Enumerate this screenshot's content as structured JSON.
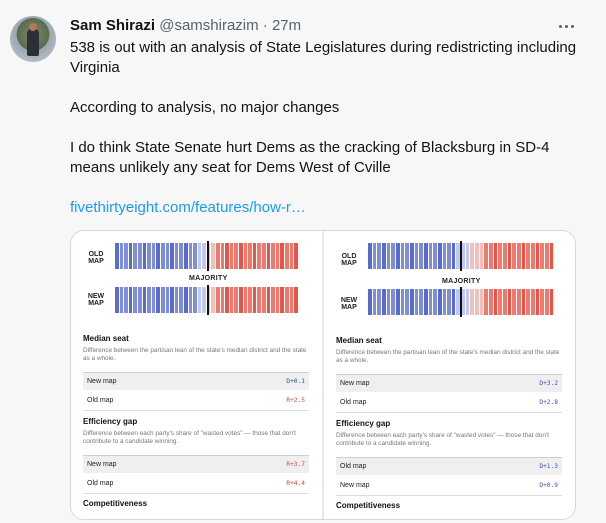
{
  "tweet": {
    "author_name": "Sam Shirazi",
    "handle": "@samshirazim",
    "separator": "·",
    "time": "27m",
    "lines": [
      "538 is out with an analysis of State Legislatures during redistricting including Virginia",
      "According to analysis, no major changes",
      "I do think State Senate hurt Dems as the cracking of Blacksburg in SD-4 means unlikely any seat for Dems West of Cville"
    ],
    "link_text": "fivethirtyeight.com/features/how-r…"
  },
  "image": {
    "left": {
      "old_map_label": "OLD MAP",
      "new_map_label": "NEW MAP",
      "majority_label": "MAJORITY",
      "sections": {
        "median_seat": {
          "title": "Median seat",
          "desc": "Difference between the partisan lean of the state's median district and the state as a whole.",
          "rows": [
            {
              "label": "New map",
              "value": "D+0.1"
            },
            {
              "label": "Old map",
              "value": "R+2.5"
            }
          ]
        },
        "efficiency_gap": {
          "title": "Efficiency gap",
          "desc": "Difference between each party's share of \"wasted votes\" — those that don't contribute to a candidate winning.",
          "rows": [
            {
              "label": "New map",
              "value": "R+3.7"
            },
            {
              "label": "Old map",
              "value": "R+4.4"
            }
          ]
        },
        "competitiveness": {
          "title": "Competitiveness"
        }
      }
    },
    "right": {
      "old_map_label": "OLD MAP",
      "new_map_label": "NEW MAP",
      "majority_label": "MAJORITY",
      "sections": {
        "median_seat": {
          "title": "Median seat",
          "desc": "Difference between the partisan lean of the state's median district and the state as a whole.",
          "rows": [
            {
              "label": "New map",
              "value": "D+3.2"
            },
            {
              "label": "Old map",
              "value": "D+2.8"
            }
          ]
        },
        "efficiency_gap": {
          "title": "Efficiency gap",
          "desc": "Difference between each party's share of \"wasted votes\" — those that don't contribute to a candidate winning.",
          "rows": [
            {
              "label": "Old map",
              "value": "D+1.3"
            },
            {
              "label": "New map",
              "value": "D+0.9"
            }
          ]
        },
        "competitiveness": {
          "title": "Competitiveness"
        }
      }
    }
  },
  "colors": {
    "dem": "#3a4fb0",
    "rep": "#d8453a",
    "link": "#1d9bf0"
  },
  "icons": {
    "more": "more-dots-icon",
    "avatar": "user-avatar"
  }
}
